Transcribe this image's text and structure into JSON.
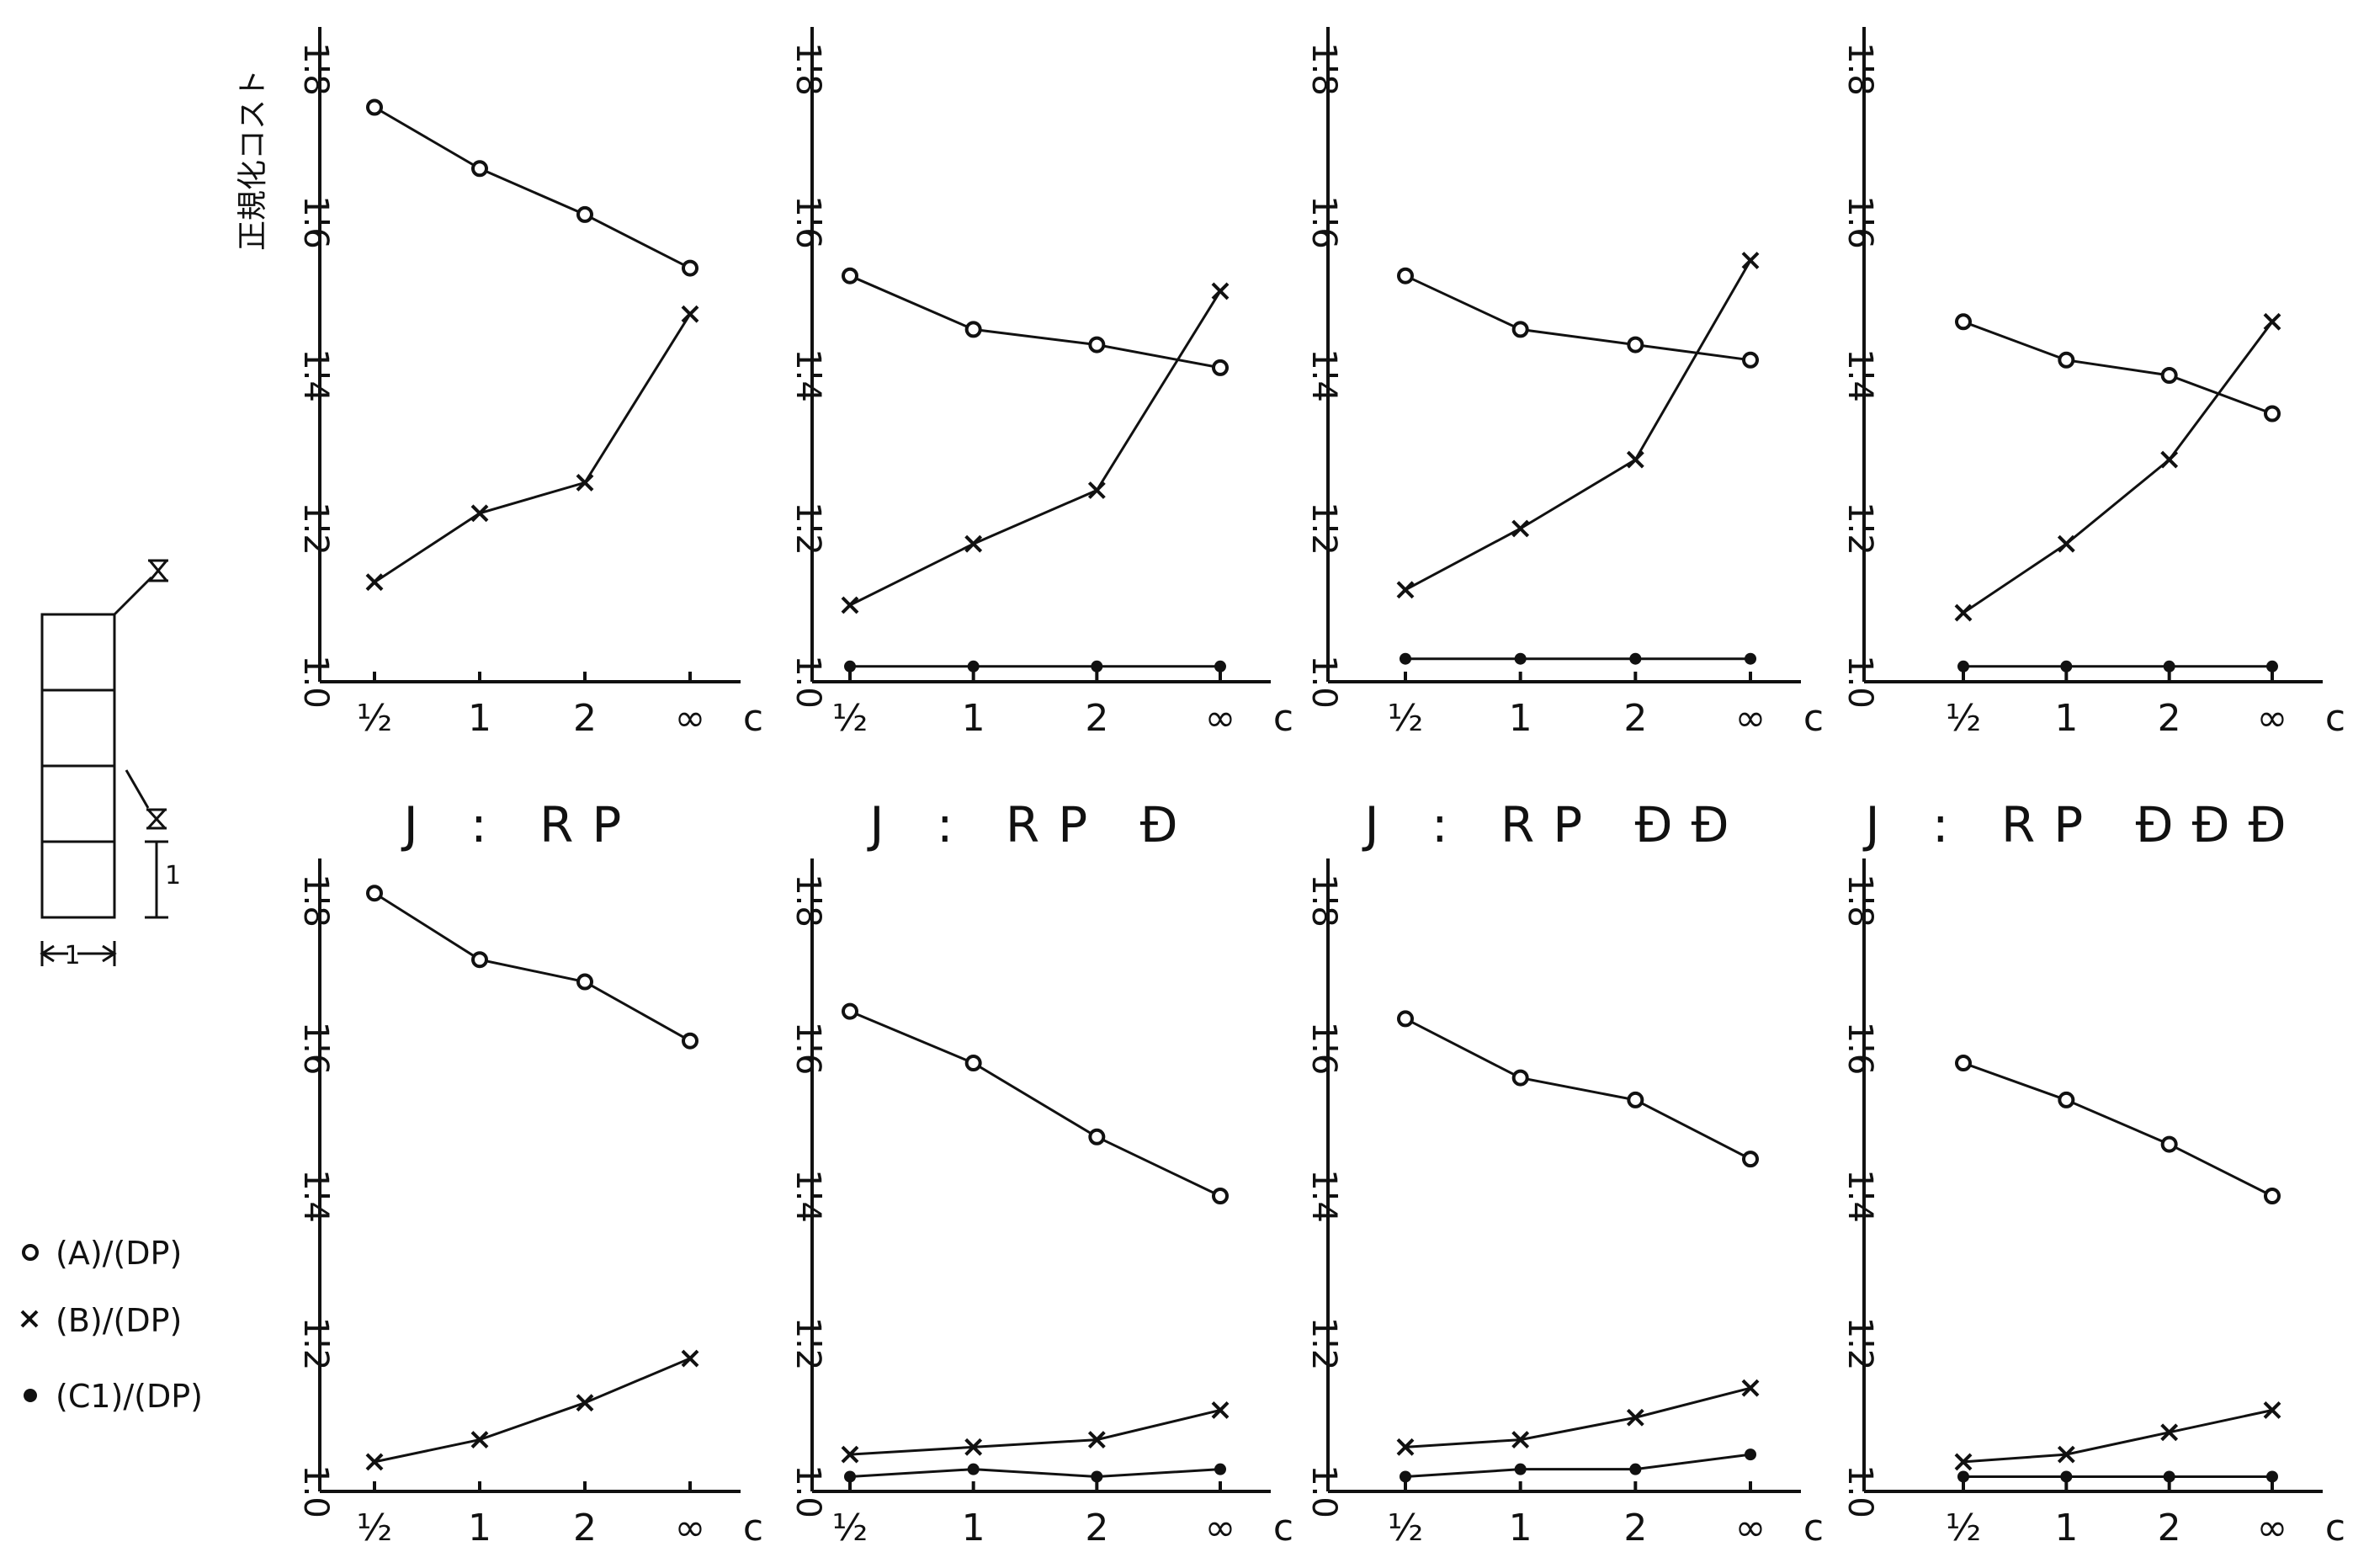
{
  "ylabel": "正規化コスト",
  "xlabel": "c",
  "legend": [
    {
      "symbol": "circle",
      "label": "(A)/(DP)"
    },
    {
      "symbol": "cross",
      "label": "(B)/(DP)"
    },
    {
      "symbol": "dot",
      "label": "(C1)/(DP)"
    }
  ],
  "diagram": {
    "height_label": "1",
    "width_label": "1"
  },
  "chart_data": [
    {
      "type": "line",
      "panel": "top-1",
      "categories": [
        "½",
        "1",
        "2",
        "∞"
      ],
      "ylim": [
        1.0,
        1.8
      ],
      "yticks": [
        "1.0",
        "1.2",
        "1.4",
        "1.6",
        "1.8"
      ],
      "xlabel": "c",
      "ylabel": "正規化コスト",
      "title": "J : RP",
      "series": [
        {
          "name": "(A)/(DP)",
          "marker": "circle",
          "values": [
            1.75,
            1.67,
            1.61,
            1.54
          ]
        },
        {
          "name": "(B)/(DP)",
          "marker": "cross",
          "values": [
            1.13,
            1.22,
            1.26,
            1.48
          ]
        }
      ]
    },
    {
      "type": "line",
      "panel": "top-2",
      "categories": [
        "½",
        "1",
        "2",
        "∞"
      ],
      "ylim": [
        1.0,
        1.8
      ],
      "yticks": [
        "1.0",
        "1.2",
        "1.4",
        "1.6",
        "1.8"
      ],
      "xlabel": "c",
      "title": "J : RP Ð",
      "series": [
        {
          "name": "(A)/(DP)",
          "marker": "circle",
          "values": [
            1.53,
            1.46,
            1.44,
            1.41
          ]
        },
        {
          "name": "(B)/(DP)",
          "marker": "cross",
          "values": [
            1.1,
            1.18,
            1.25,
            1.51
          ]
        },
        {
          "name": "(C1)/(DP)",
          "marker": "dot",
          "values": [
            1.02,
            1.02,
            1.02,
            1.02
          ]
        }
      ]
    },
    {
      "type": "line",
      "panel": "top-3",
      "categories": [
        "½",
        "1",
        "2",
        "∞"
      ],
      "ylim": [
        1.0,
        1.8
      ],
      "yticks": [
        "1.0",
        "1.2",
        "1.4",
        "1.6",
        "1.8"
      ],
      "xlabel": "c",
      "title": "J : RP ÐÐ",
      "series": [
        {
          "name": "(A)/(DP)",
          "marker": "circle",
          "values": [
            1.53,
            1.46,
            1.44,
            1.42
          ]
        },
        {
          "name": "(B)/(DP)",
          "marker": "cross",
          "values": [
            1.12,
            1.2,
            1.29,
            1.55
          ]
        },
        {
          "name": "(C1)/(DP)",
          "marker": "dot",
          "values": [
            1.03,
            1.03,
            1.03,
            1.03
          ]
        }
      ]
    },
    {
      "type": "line",
      "panel": "top-4",
      "categories": [
        "½",
        "1",
        "2",
        "∞"
      ],
      "ylim": [
        1.0,
        1.8
      ],
      "yticks": [
        "1.0",
        "1.2",
        "1.4",
        "1.6",
        "1.8"
      ],
      "xlabel": "c",
      "title": "J : RP ÐÐÐ",
      "series": [
        {
          "name": "(A)/(DP)",
          "marker": "circle",
          "values": [
            1.47,
            1.42,
            1.4,
            1.35
          ]
        },
        {
          "name": "(B)/(DP)",
          "marker": "cross",
          "values": [
            1.09,
            1.18,
            1.29,
            1.47
          ]
        },
        {
          "name": "(C1)/(DP)",
          "marker": "dot",
          "values": [
            1.02,
            1.02,
            1.02,
            1.02
          ]
        }
      ]
    },
    {
      "type": "line",
      "panel": "bottom-1",
      "categories": [
        "½",
        "1",
        "2",
        "∞"
      ],
      "ylim": [
        1.0,
        1.8
      ],
      "yticks": [
        "1.0",
        "1.2",
        "1.4",
        "1.6",
        "1.8"
      ],
      "xlabel": "c",
      "series": [
        {
          "name": "(A)/(DP)",
          "marker": "circle",
          "values": [
            1.81,
            1.72,
            1.69,
            1.61
          ]
        },
        {
          "name": "(B)/(DP)",
          "marker": "cross",
          "values": [
            1.04,
            1.07,
            1.12,
            1.18
          ]
        }
      ]
    },
    {
      "type": "line",
      "panel": "bottom-2",
      "categories": [
        "½",
        "1",
        "2",
        "∞"
      ],
      "ylim": [
        1.0,
        1.8
      ],
      "yticks": [
        "1.0",
        "1.2",
        "1.4",
        "1.6",
        "1.8"
      ],
      "xlabel": "c",
      "series": [
        {
          "name": "(A)/(DP)",
          "marker": "circle",
          "values": [
            1.65,
            1.58,
            1.48,
            1.4
          ]
        },
        {
          "name": "(B)/(DP)",
          "marker": "cross",
          "values": [
            1.05,
            1.06,
            1.07,
            1.11
          ]
        },
        {
          "name": "(C1)/(DP)",
          "marker": "dot",
          "values": [
            1.02,
            1.03,
            1.02,
            1.03
          ]
        }
      ]
    },
    {
      "type": "line",
      "panel": "bottom-3",
      "categories": [
        "½",
        "1",
        "2",
        "∞"
      ],
      "ylim": [
        1.0,
        1.8
      ],
      "yticks": [
        "1.0",
        "1.2",
        "1.4",
        "1.6",
        "1.8"
      ],
      "xlabel": "c",
      "series": [
        {
          "name": "(A)/(DP)",
          "marker": "circle",
          "values": [
            1.64,
            1.56,
            1.53,
            1.45
          ]
        },
        {
          "name": "(B)/(DP)",
          "marker": "cross",
          "values": [
            1.06,
            1.07,
            1.1,
            1.14
          ]
        },
        {
          "name": "(C1)/(DP)",
          "marker": "dot",
          "values": [
            1.02,
            1.03,
            1.03,
            1.05
          ]
        }
      ]
    },
    {
      "type": "line",
      "panel": "bottom-4",
      "categories": [
        "½",
        "1",
        "2",
        "∞"
      ],
      "ylim": [
        1.0,
        1.8
      ],
      "yticks": [
        "1.0",
        "1.2",
        "1.4",
        "1.6",
        "1.8"
      ],
      "xlabel": "c",
      "series": [
        {
          "name": "(A)/(DP)",
          "marker": "circle",
          "values": [
            1.58,
            1.53,
            1.47,
            1.4
          ]
        },
        {
          "name": "(B)/(DP)",
          "marker": "cross",
          "values": [
            1.04,
            1.05,
            1.08,
            1.11
          ]
        },
        {
          "name": "(C1)/(DP)",
          "marker": "dot",
          "values": [
            1.02,
            1.02,
            1.02,
            1.02
          ]
        }
      ]
    }
  ]
}
